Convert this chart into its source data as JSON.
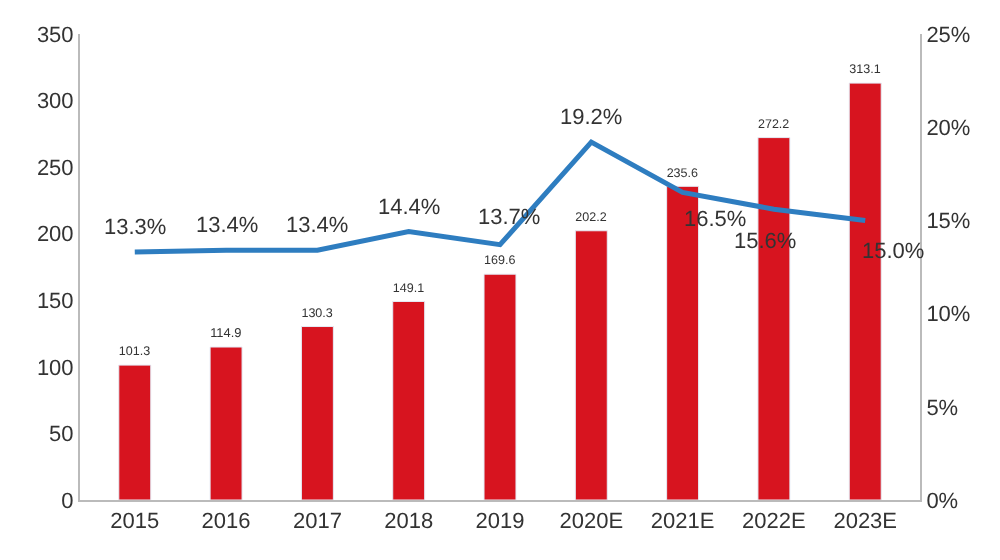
{
  "chart_data": {
    "type": "bar",
    "categories": [
      "2015",
      "2016",
      "2017",
      "2018",
      "2019",
      "2020E",
      "2021E",
      "2022E",
      "2023E"
    ],
    "series": [
      {
        "color": "#d7141f",
        "values": [
          101.3,
          114.9,
          130.3,
          149.1,
          169.6,
          202.2,
          235.6,
          272.2,
          313.1
        ],
        "value_labels": [
          "101.3",
          "114.9",
          "130.3",
          "149.1",
          "169.6",
          "202.2",
          "235.6",
          "272.2",
          "313.1"
        ]
      },
      {
        "type": "line",
        "axis": "y2",
        "color": "#2e7dc0",
        "values": [
          13.3,
          13.4,
          13.4,
          14.4,
          13.7,
          19.2,
          16.5,
          15.6,
          15.0
        ],
        "value_labels": [
          "13.3%",
          "13.4%",
          "13.4%",
          "14.4%",
          "13.7%",
          "19.2%",
          "16.5%",
          "15.6%",
          "15.0%"
        ]
      }
    ],
    "ylim": [
      0,
      350
    ],
    "yticks": [
      0,
      50,
      100,
      150,
      200,
      250,
      300,
      350
    ],
    "y2lim": [
      0,
      25
    ],
    "y2ticks": [
      {
        "value": 0,
        "label": "0%"
      },
      {
        "value": 5,
        "label": "5%"
      },
      {
        "value": 10,
        "label": "10%"
      },
      {
        "value": 15,
        "label": "15%"
      },
      {
        "value": 20,
        "label": "20%"
      },
      {
        "value": 25,
        "label": "25%"
      }
    ],
    "grid": false,
    "marker": "none",
    "line_style": "solid"
  }
}
